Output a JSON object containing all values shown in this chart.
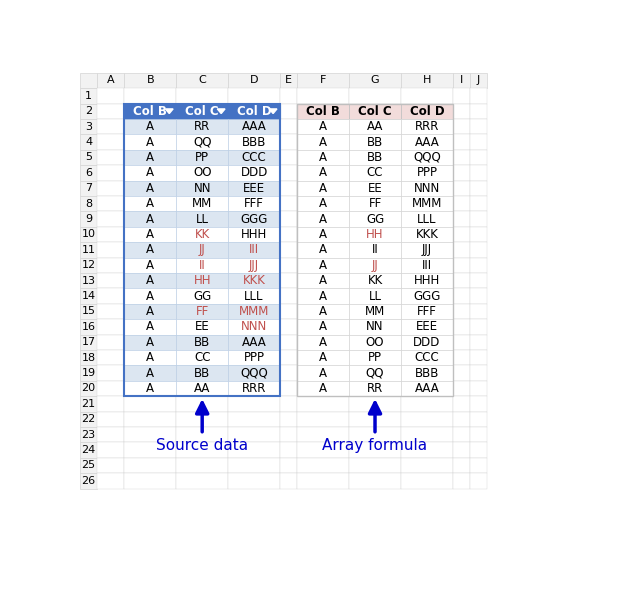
{
  "left_table": {
    "headers": [
      "Col B",
      "Col C",
      "Col D"
    ],
    "rows": [
      [
        "A",
        "RR",
        "AAA"
      ],
      [
        "A",
        "QQ",
        "BBB"
      ],
      [
        "A",
        "PP",
        "CCC"
      ],
      [
        "A",
        "OO",
        "DDD"
      ],
      [
        "A",
        "NN",
        "EEE"
      ],
      [
        "A",
        "MM",
        "FFF"
      ],
      [
        "A",
        "LL",
        "GGG"
      ],
      [
        "A",
        "KK",
        "HHH"
      ],
      [
        "A",
        "JJ",
        "III"
      ],
      [
        "A",
        "II",
        "JJJ"
      ],
      [
        "A",
        "HH",
        "KKK"
      ],
      [
        "A",
        "GG",
        "LLL"
      ],
      [
        "A",
        "FF",
        "MMM"
      ],
      [
        "A",
        "EE",
        "NNN"
      ],
      [
        "A",
        "BB",
        "AAA"
      ],
      [
        "A",
        "CC",
        "PPP"
      ],
      [
        "A",
        "BB",
        "QQQ"
      ],
      [
        "A",
        "AA",
        "RRR"
      ]
    ],
    "header_bg": "#4472C4",
    "header_fg": "#FFFFFF",
    "row_bg_odd": "#DCE6F1",
    "row_bg_even": "#FFFFFF",
    "orange_cells": [
      [
        8,
        1
      ],
      [
        9,
        1
      ],
      [
        9,
        2
      ],
      [
        10,
        1
      ],
      [
        10,
        2
      ],
      [
        11,
        1
      ],
      [
        11,
        2
      ],
      [
        13,
        1
      ],
      [
        13,
        2
      ],
      [
        14,
        2
      ]
    ],
    "border_color": "#4472C4"
  },
  "right_table": {
    "headers": [
      "Col B",
      "Col C",
      "Col D"
    ],
    "rows": [
      [
        "A",
        "AA",
        "RRR"
      ],
      [
        "A",
        "BB",
        "AAA"
      ],
      [
        "A",
        "BB",
        "QQQ"
      ],
      [
        "A",
        "CC",
        "PPP"
      ],
      [
        "A",
        "EE",
        "NNN"
      ],
      [
        "A",
        "FF",
        "MMM"
      ],
      [
        "A",
        "GG",
        "LLL"
      ],
      [
        "A",
        "HH",
        "KKK"
      ],
      [
        "A",
        "II",
        "JJJ"
      ],
      [
        "A",
        "JJ",
        "III"
      ],
      [
        "A",
        "KK",
        "HHH"
      ],
      [
        "A",
        "LL",
        "GGG"
      ],
      [
        "A",
        "MM",
        "FFF"
      ],
      [
        "A",
        "NN",
        "EEE"
      ],
      [
        "A",
        "OO",
        "DDD"
      ],
      [
        "A",
        "PP",
        "CCC"
      ],
      [
        "A",
        "QQ",
        "BBB"
      ],
      [
        "A",
        "RR",
        "AAA"
      ]
    ],
    "header_bg": "#F2DCDB",
    "header_fg": "#000000",
    "row_bg_odd": "#FFFFFF",
    "row_bg_even": "#FFFFFF",
    "orange_cells": [
      [
        8,
        1
      ],
      [
        10,
        1
      ]
    ],
    "border_color": "#BFBFBF"
  },
  "col_labels": [
    "A",
    "B",
    "C",
    "D",
    "E",
    "F",
    "G",
    "H",
    "I",
    "J"
  ],
  "num_rows": 27,
  "arrow_color": "#0000CC",
  "label_color": "#0000CC",
  "source_label": "Source data",
  "formula_label": "Array formula",
  "bg_color": "#FFFFFF",
  "header_bg": "#F2F2F2",
  "grid_color": "#D4D4D4",
  "orange_color": "#C0504D"
}
